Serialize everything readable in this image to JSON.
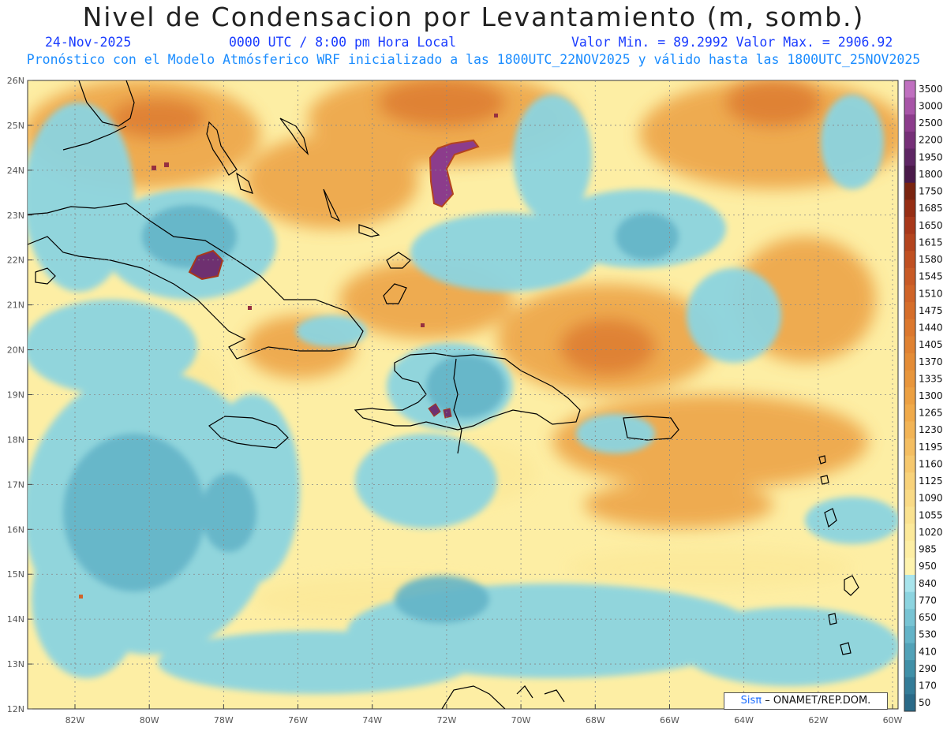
{
  "header": {
    "title": "Nivel de Condensacion por Levantamiento (m, somb.)",
    "date": "24-Nov-2025",
    "time": "0000 UTC / 8:00 pm Hora Local",
    "min_max": "Valor Min. = 89.2992  Valor Max. = 2906.92",
    "forecast_info": "Pronóstico con el Modelo Atmósferico WRF inicializado a las 1800UTC_22NOV2025 y válido hasta las  1800UTC_25NOV2025"
  },
  "map": {
    "lat_labels": [
      "26N",
      "25N",
      "24N",
      "23N",
      "22N",
      "21N",
      "20N",
      "19N",
      "18N",
      "17N",
      "16N",
      "15N",
      "14N",
      "13N",
      "12N"
    ],
    "lon_labels": [
      "82W",
      "80W",
      "78W",
      "76W",
      "74W",
      "72W",
      "70W",
      "68W",
      "66W",
      "64W",
      "62W",
      "60W"
    ]
  },
  "colorbar": {
    "labels": [
      "3500",
      "3000",
      "2500",
      "2200",
      "1950",
      "1800",
      "1750",
      "1685",
      "1650",
      "1615",
      "1580",
      "1545",
      "1510",
      "1475",
      "1440",
      "1405",
      "1370",
      "1335",
      "1300",
      "1265",
      "1230",
      "1195",
      "1160",
      "1125",
      "1090",
      "1055",
      "1020",
      "985",
      "950",
      "840",
      "770",
      "650",
      "530",
      "410",
      "290",
      "170",
      "50"
    ],
    "colors": [
      "#c070c0",
      "#a855a8",
      "#8c3c8c",
      "#763078",
      "#5e2664",
      "#4a1a4a",
      "#7a2410",
      "#962e14",
      "#a8381a",
      "#b4441e",
      "#c05022",
      "#c85a26",
      "#d06428",
      "#d66e2a",
      "#dc782e",
      "#e08232",
      "#e48c36",
      "#e8963c",
      "#eca042",
      "#f0aa4a",
      "#f2b456",
      "#f4be62",
      "#f6c86e",
      "#f8d27a",
      "#f9da86",
      "#fae290",
      "#fce99a",
      "#fdeea4",
      "#fef3ae",
      "#a8e4ec",
      "#8cd4e0",
      "#78c4d4",
      "#64b4c8",
      "#52a2b8",
      "#4090a8",
      "#347c98",
      "#2a6a88"
    ]
  },
  "credit": {
    "logo": "Sisπ",
    "text": "– ONAMET/REP.DOM."
  }
}
